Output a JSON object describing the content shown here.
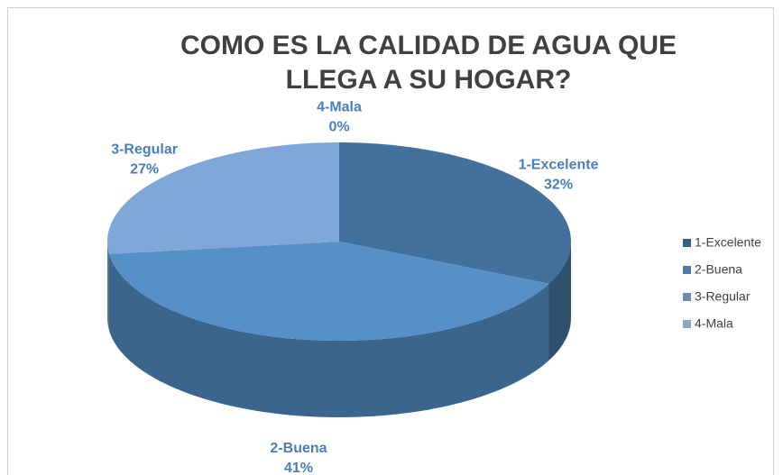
{
  "chart_data": {
    "type": "pie",
    "title": "COMO ES LA CALIDAD DE AGUA QUE LLEGA A SU HOGAR?",
    "categories": [
      "1-Excelente",
      "2-Buena",
      "3-Regular",
      "4-Mala"
    ],
    "values": [
      32,
      41,
      27,
      0
    ],
    "value_labels": [
      "32%",
      "41%",
      "27%",
      "0%"
    ],
    "colors": [
      "#41719c",
      "#5590c8",
      "#7ea6d6",
      "#a9c4e6"
    ],
    "legend": "right"
  }
}
